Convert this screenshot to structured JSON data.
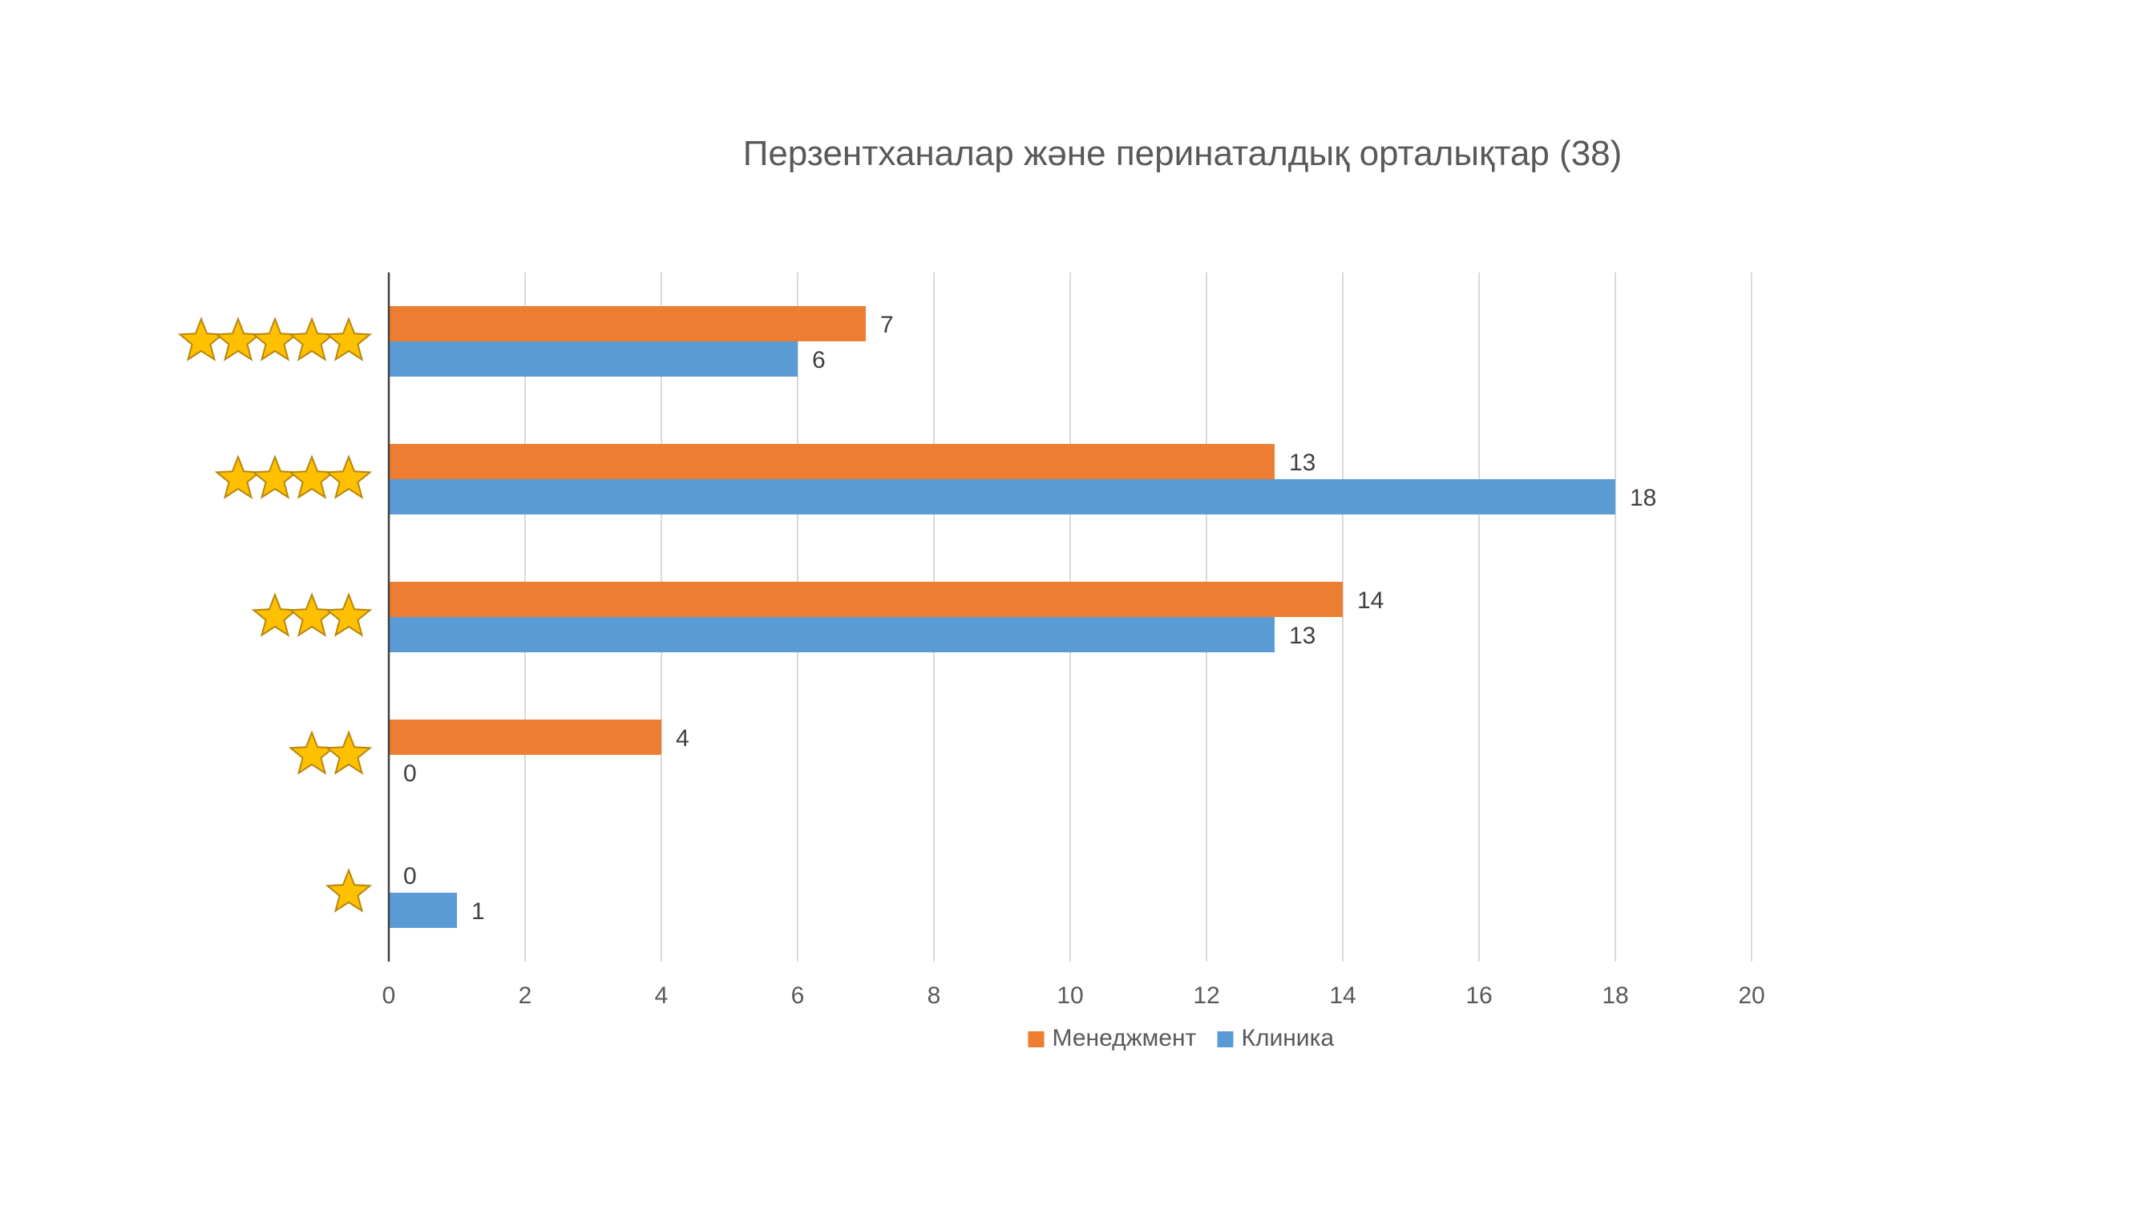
{
  "chart_data": {
    "type": "bar",
    "orientation": "horizontal",
    "title": "Перзентханалар және перинаталдық орталықтар (38)",
    "xlabel": "",
    "ylabel": "",
    "categories": [
      {
        "stars": 5,
        "icon": "five-stars-icon"
      },
      {
        "stars": 4,
        "icon": "four-stars-icon"
      },
      {
        "stars": 3,
        "icon": "three-stars-icon"
      },
      {
        "stars": 2,
        "icon": "two-stars-icon"
      },
      {
        "stars": 1,
        "icon": "one-star-icon"
      }
    ],
    "series": [
      {
        "name": "Менеджмент",
        "color": "#ED7D31",
        "values": [
          7,
          13,
          14,
          4,
          0
        ]
      },
      {
        "name": "Клиника",
        "color": "#5B9BD5",
        "values": [
          6,
          18,
          13,
          0,
          1
        ]
      }
    ],
    "xlim": [
      0,
      20
    ],
    "xticks": [
      "0",
      "2",
      "4",
      "6",
      "8",
      "10",
      "12",
      "14",
      "16",
      "18",
      "20"
    ],
    "grid": true,
    "legend_position": "bottom",
    "data_labels": true,
    "colors": {
      "star_fill": "#FFC000",
      "star_stroke": "#B8860B",
      "grid": "#D9D9D9",
      "axis": "#404040",
      "text": "#595959",
      "title": "#595959"
    }
  }
}
